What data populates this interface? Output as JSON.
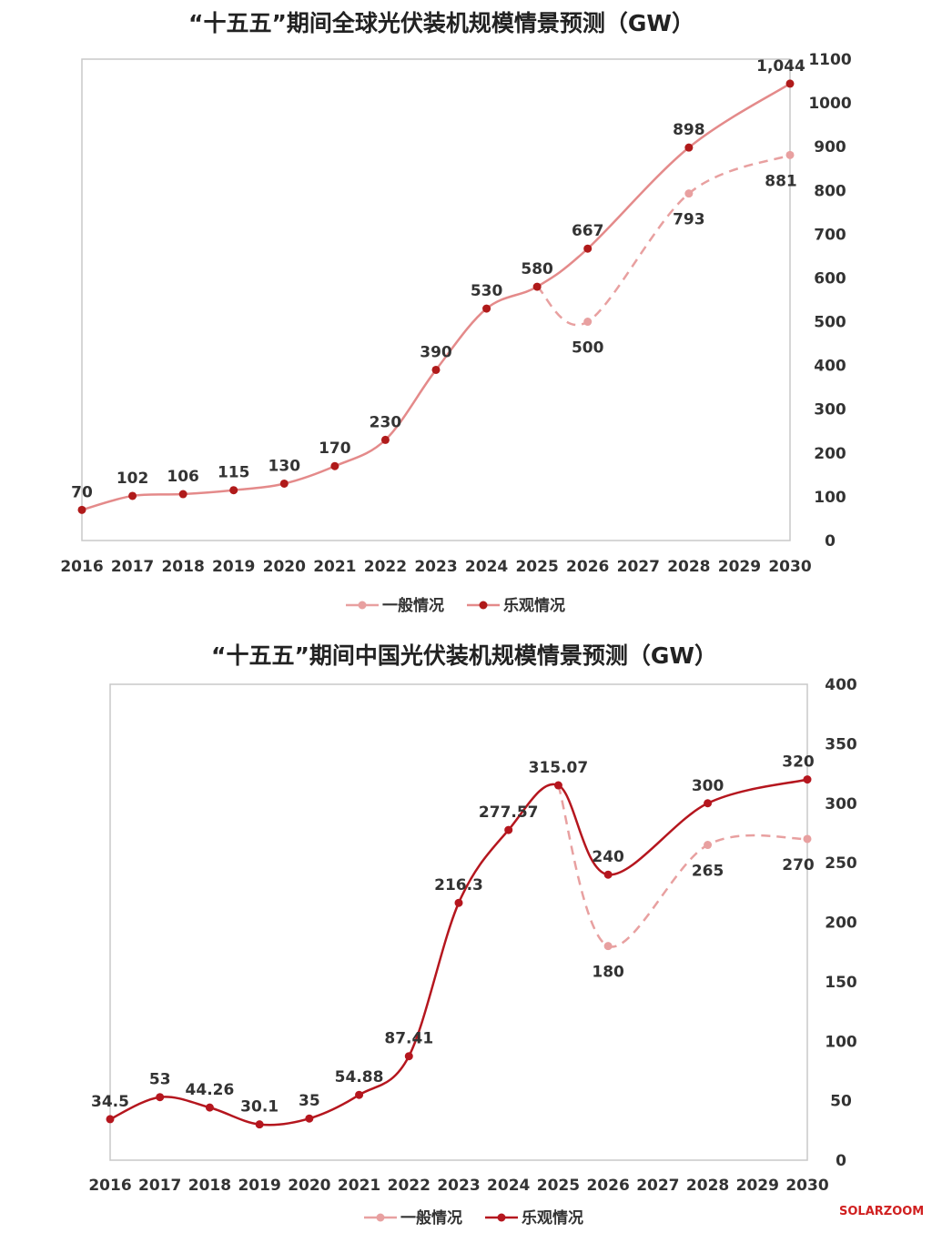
{
  "chart_data": [
    {
      "type": "line",
      "title": "“十五五”期间全球光伏装机规模情景预测（GW）",
      "xlabel": "",
      "ylabel": "",
      "x": [
        "2016",
        "2017",
        "2018",
        "2019",
        "2020",
        "2021",
        "2022",
        "2023",
        "2024",
        "2025",
        "2026",
        "2027",
        "2028",
        "2029",
        "2030"
      ],
      "ylim": [
        0,
        1100
      ],
      "yticks": [
        "0",
        "100",
        "200",
        "300",
        "400",
        "500",
        "600",
        "700",
        "800",
        "900",
        "1000",
        "1100"
      ],
      "y_axis_side": "right",
      "grid": false,
      "legend_placement": "bottom-center",
      "series": [
        {
          "name": "一般情况",
          "color": "#e8a0a0",
          "dashed_from": "2025",
          "values": [
            null,
            null,
            null,
            null,
            null,
            null,
            null,
            null,
            null,
            580,
            500,
            null,
            793,
            null,
            881
          ],
          "labels": [
            null,
            null,
            null,
            null,
            null,
            null,
            null,
            null,
            null,
            null,
            "500",
            null,
            "793",
            null,
            "881"
          ],
          "label_pos": "below"
        },
        {
          "name": "乐观情况",
          "color": "#e48a8a",
          "marker_color": "#b01a1a",
          "values": [
            70,
            102,
            106,
            115,
            130,
            170,
            230,
            390,
            530,
            580,
            667,
            null,
            898,
            null,
            1044
          ],
          "labels": [
            "70",
            "102",
            "106",
            "115",
            "130",
            "170",
            "230",
            "390",
            "530",
            "580",
            "667",
            null,
            "898",
            null,
            "1,044"
          ],
          "label_pos": "above"
        }
      ]
    },
    {
      "type": "line",
      "title": "“十五五”期间中国光伏装机规模情景预测（GW）",
      "xlabel": "",
      "ylabel": "",
      "x": [
        "2016",
        "2017",
        "2018",
        "2019",
        "2020",
        "2021",
        "2022",
        "2023",
        "2024",
        "2025",
        "2026",
        "2027",
        "2028",
        "2029",
        "2030"
      ],
      "ylim": [
        0,
        400
      ],
      "yticks": [
        "0",
        "50",
        "100",
        "150",
        "200",
        "250",
        "300",
        "350",
        "400"
      ],
      "y_axis_side": "right",
      "grid": false,
      "legend_placement": "bottom-center",
      "series": [
        {
          "name": "一般情况",
          "color": "#e8a0a0",
          "dashed_from": "2025",
          "values": [
            null,
            null,
            null,
            null,
            null,
            null,
            null,
            null,
            null,
            315.07,
            180,
            null,
            265,
            null,
            270
          ],
          "labels": [
            null,
            null,
            null,
            null,
            null,
            null,
            null,
            null,
            null,
            null,
            "180",
            null,
            "265",
            null,
            "270"
          ],
          "label_pos": "below"
        },
        {
          "name": "乐观情况",
          "color": "#b5161e",
          "marker_color": "#b5161e",
          "values": [
            34.5,
            53,
            44.26,
            30.1,
            35,
            54.88,
            87.41,
            216.3,
            277.57,
            315.07,
            240,
            null,
            300,
            null,
            320
          ],
          "labels": [
            "34.5",
            "53",
            "44.26",
            "30.1",
            "35",
            "54.88",
            "87.41",
            "216.3",
            "277.57",
            "315.07",
            "240",
            null,
            "300",
            null,
            "320"
          ],
          "label_pos": "above"
        }
      ]
    }
  ],
  "watermark": "SOLARZOOM"
}
